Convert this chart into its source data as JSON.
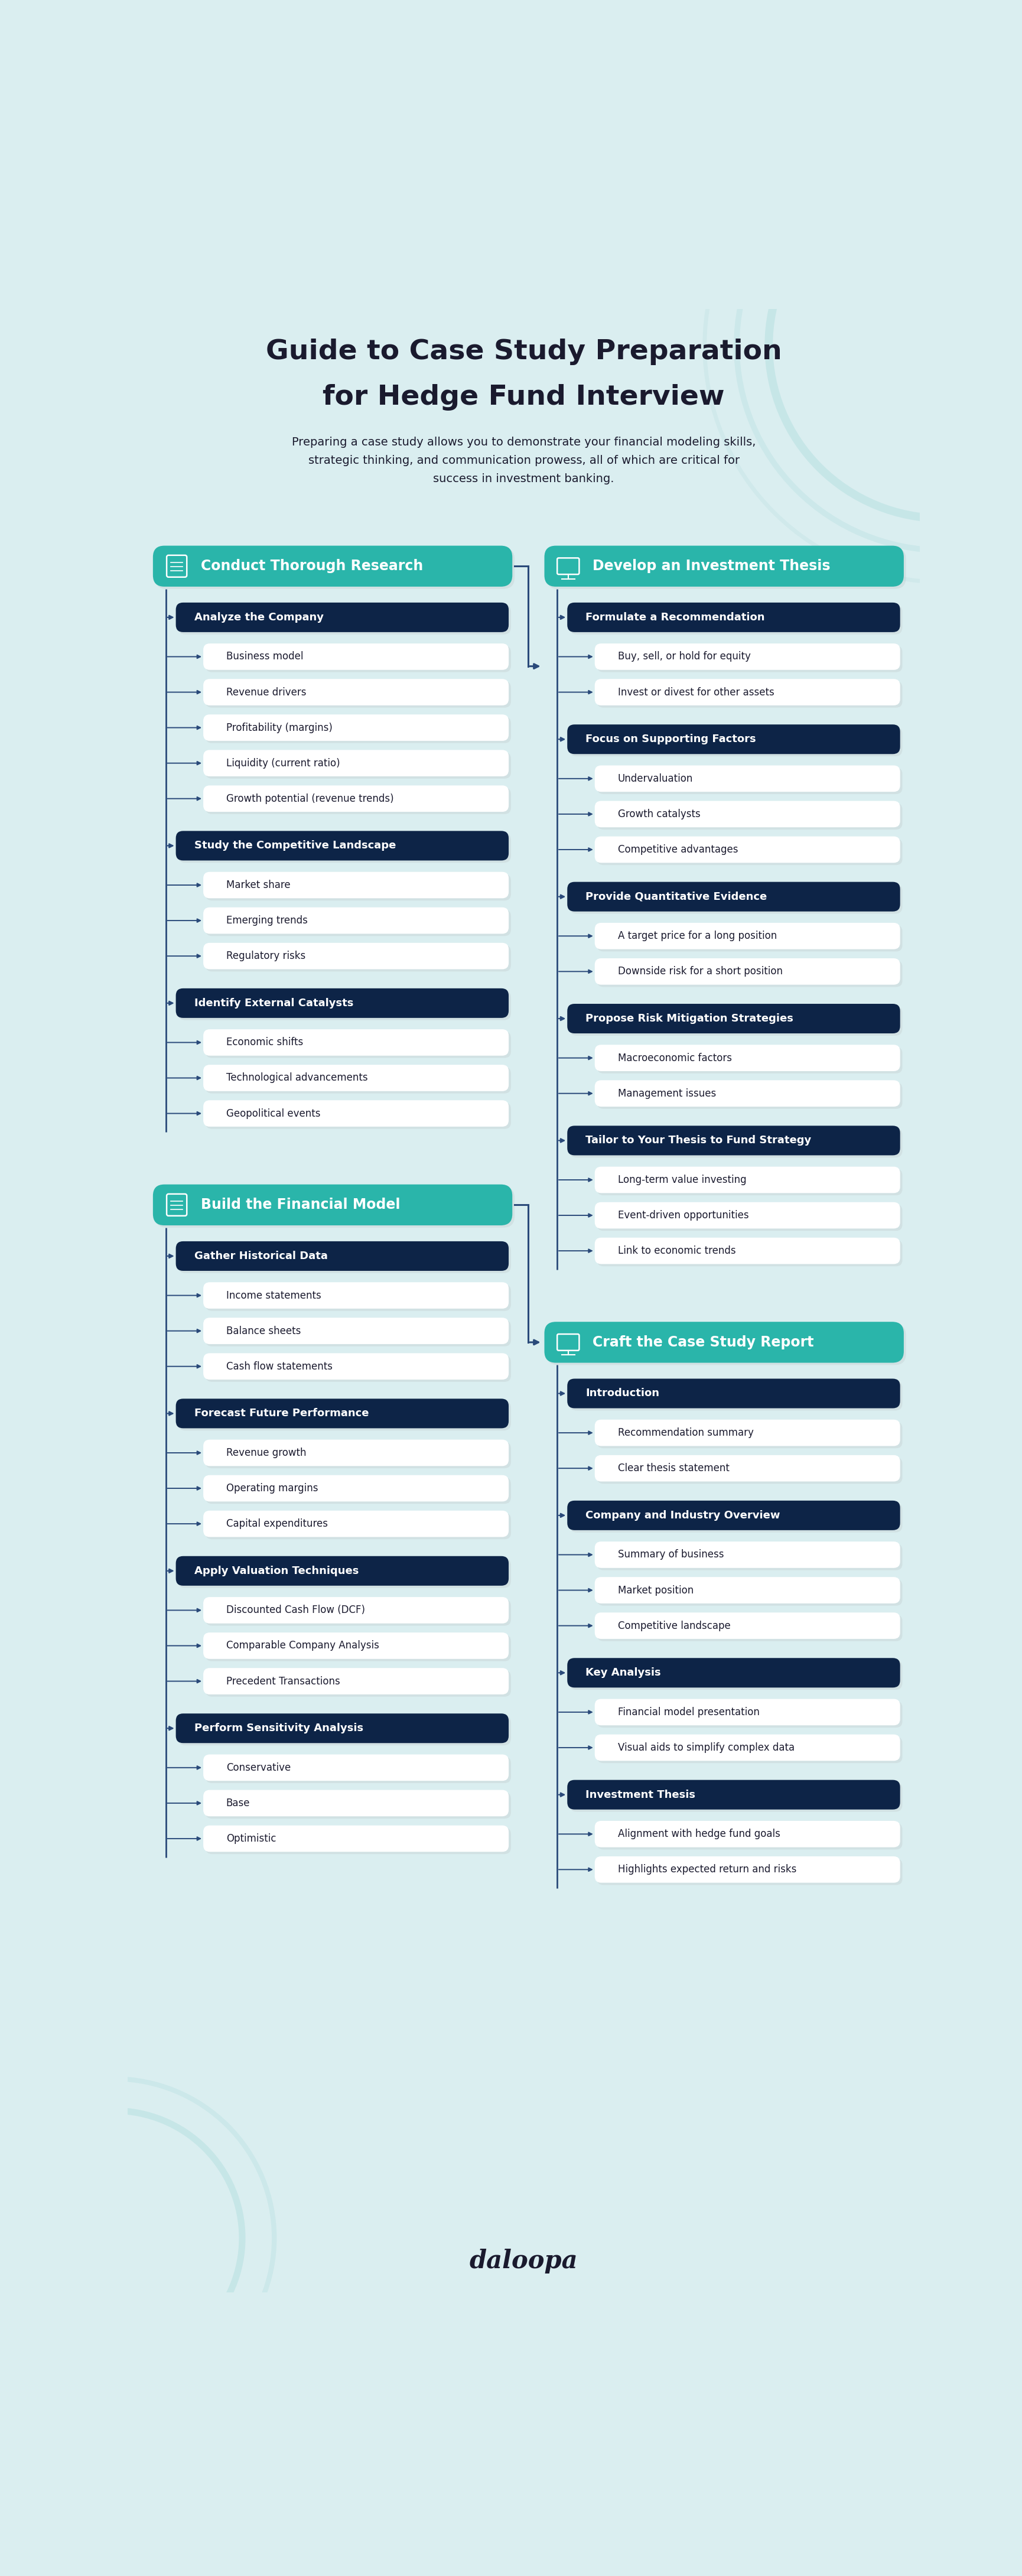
{
  "title_line1": "Guide to Case Study Preparation",
  "title_line2": "for Hedge Fund Interview",
  "subtitle": "Preparing a case study allows you to demonstrate your financial modeling skills,\nstrategic thinking, and communication prowess, all of which are critical for\nsuccess in investment banking.",
  "bg_color": "#daeef0",
  "teal_color": "#2ab5aa",
  "dark_navy": "#0d2447",
  "white": "#ffffff",
  "text_dark": "#1a1a2e",
  "connector_color": "#2a4a7a",
  "footer": "daloopa",
  "row1_left": {
    "header": "Conduct Thorough Research",
    "sections": [
      {
        "title": "Analyze the Company",
        "items": [
          "Business model",
          "Revenue drivers",
          "Profitability (margins)",
          "Liquidity (current ratio)",
          "Growth potential (revenue trends)"
        ]
      },
      {
        "title": "Study the Competitive Landscape",
        "items": [
          "Market share",
          "Emerging trends",
          "Regulatory risks"
        ]
      },
      {
        "title": "Identify External Catalysts",
        "items": [
          "Economic shifts",
          "Technological advancements",
          "Geopolitical events"
        ]
      }
    ]
  },
  "row1_right": {
    "header": "Develop an Investment Thesis",
    "sections": [
      {
        "title": "Formulate a Recommendation",
        "items": [
          "Buy, sell, or hold for equity",
          "Invest or divest for other assets"
        ]
      },
      {
        "title": "Focus on Supporting Factors",
        "items": [
          "Undervaluation",
          "Growth catalysts",
          "Competitive advantages"
        ]
      },
      {
        "title": "Provide Quantitative Evidence",
        "items": [
          "A target price for a long position",
          "Downside risk for a short position"
        ]
      },
      {
        "title": "Propose Risk Mitigation Strategies",
        "items": [
          "Macroeconomic factors",
          "Management issues"
        ]
      },
      {
        "title": "Tailor to Your Thesis to Fund Strategy",
        "items": [
          "Long-term value investing",
          "Event-driven opportunities",
          "Link to economic trends"
        ]
      }
    ]
  },
  "row2_left": {
    "header": "Build the Financial Model",
    "sections": [
      {
        "title": "Gather Historical Data",
        "items": [
          "Income statements",
          "Balance sheets",
          "Cash flow statements"
        ]
      },
      {
        "title": "Forecast Future Performance",
        "items": [
          "Revenue growth",
          "Operating margins",
          "Capital expenditures"
        ]
      },
      {
        "title": "Apply Valuation Techniques",
        "items": [
          "Discounted Cash Flow (DCF)",
          "Comparable Company Analysis",
          "Precedent Transactions"
        ]
      },
      {
        "title": "Perform Sensitivity Analysis",
        "items": [
          "Conservative",
          "Base",
          "Optimistic"
        ]
      }
    ]
  },
  "row2_right": {
    "header": "Craft the Case Study Report",
    "sections": [
      {
        "title": "Introduction",
        "items": [
          "Recommendation summary",
          "Clear thesis statement"
        ]
      },
      {
        "title": "Company and Industry Overview",
        "items": [
          "Summary of business",
          "Market position",
          "Competitive landscape"
        ]
      },
      {
        "title": "Key Analysis",
        "items": [
          "Financial model presentation",
          "Visual aids to simplify complex data"
        ]
      },
      {
        "title": "Investment Thesis",
        "items": [
          "Alignment with hedge fund goals",
          "Highlights expected return and risks"
        ]
      }
    ]
  }
}
